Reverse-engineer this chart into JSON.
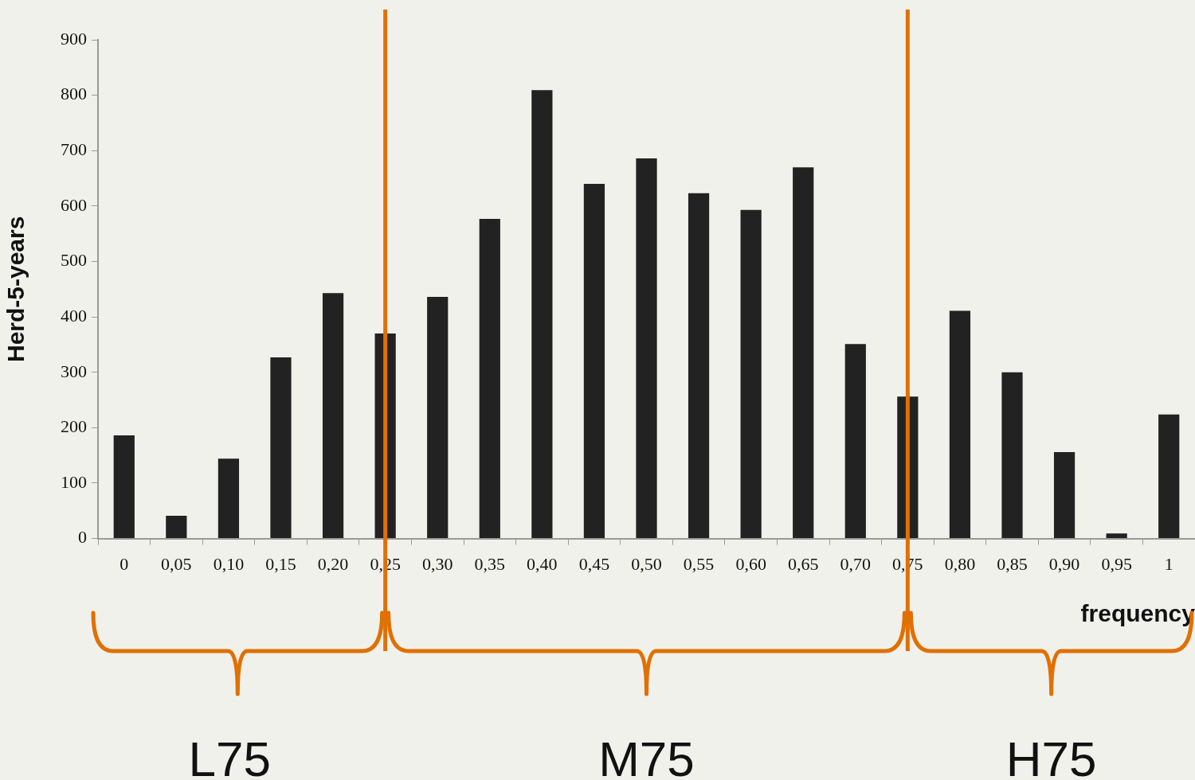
{
  "chart_data": {
    "type": "bar",
    "xlabel": "frequency",
    "ylabel": "Herd-5-years",
    "categories": [
      "0",
      "0,05",
      "0,10",
      "0,15",
      "0,20",
      "0,25",
      "0,30",
      "0,35",
      "0,40",
      "0,45",
      "0,50",
      "0,55",
      "0,60",
      "0,65",
      "0,70",
      "0,75",
      "0,80",
      "0,85",
      "0,90",
      "0,95",
      "1"
    ],
    "values": [
      186,
      41,
      144,
      327,
      443,
      370,
      436,
      577,
      809,
      640,
      686,
      623,
      593,
      670,
      351,
      256,
      411,
      300,
      156,
      9,
      224
    ],
    "color": "#222222",
    "ylim": [
      0,
      900
    ],
    "yticks": [
      0,
      100,
      200,
      300,
      400,
      500,
      600,
      700,
      800,
      900
    ],
    "grid": false,
    "legend": false,
    "ref_lines": [
      {
        "axis": "x",
        "value": "0,25",
        "color": "#e07000"
      },
      {
        "axis": "x",
        "value": "0,75",
        "color": "#e07000"
      }
    ],
    "annotations": [
      "L75",
      "M75",
      "H75"
    ]
  }
}
